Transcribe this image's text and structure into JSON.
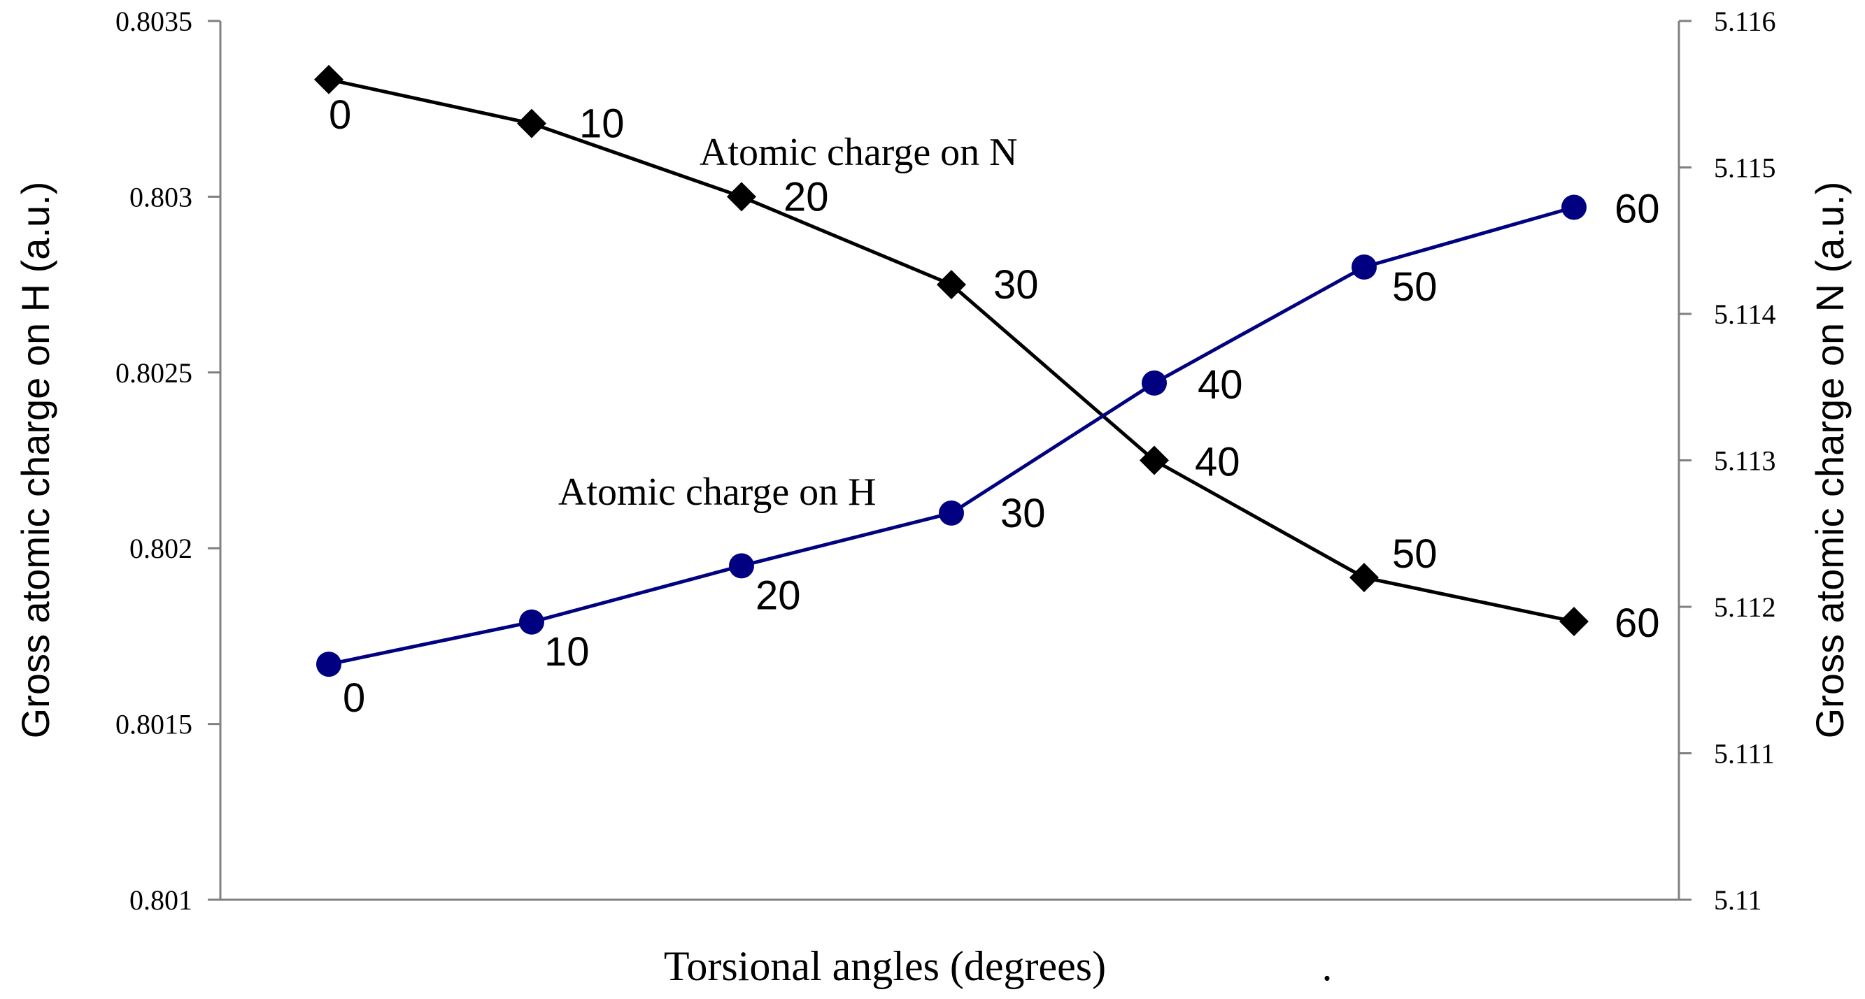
{
  "chart_data": {
    "type": "line",
    "title": "",
    "xlabel": "Torsional angles (degrees)",
    "xlabel_trailing": ".",
    "ylabel_left": "Gross atomic charge on H (a.u.)",
    "ylabel_right": "Gross atomic charge on N (a.u.)",
    "x": [
      0,
      10,
      20,
      30,
      40,
      50,
      60
    ],
    "y_left_lim": [
      0.801,
      0.8035
    ],
    "y_left_ticks": [
      "0.801",
      "0.8015",
      "0.802",
      "0.8025",
      "0.803",
      "0.8035"
    ],
    "y_right_lim": [
      5.11,
      5.116
    ],
    "y_right_ticks": [
      "5.11",
      "5.111",
      "5.112",
      "5.113",
      "5.114",
      "5.115",
      "5.116"
    ],
    "grid": false,
    "legend": "none",
    "series": [
      {
        "name": "Atomic charge on N",
        "axis": "right",
        "color": "#000000",
        "marker": "diamond",
        "values": [
          5.1156,
          5.1153,
          5.1148,
          5.1142,
          5.113,
          5.1122,
          5.1119
        ],
        "point_labels": [
          "0",
          "10",
          "20",
          "30",
          "40",
          "50",
          "60"
        ]
      },
      {
        "name": "Atomic charge on H",
        "axis": "left",
        "color": "#000080",
        "marker": "circle",
        "values": [
          0.80167,
          0.80179,
          0.80195,
          0.8021,
          0.80247,
          0.8028,
          0.80297
        ],
        "point_labels": [
          "0",
          "10",
          "20",
          "30",
          "40",
          "50",
          "60"
        ]
      }
    ]
  }
}
